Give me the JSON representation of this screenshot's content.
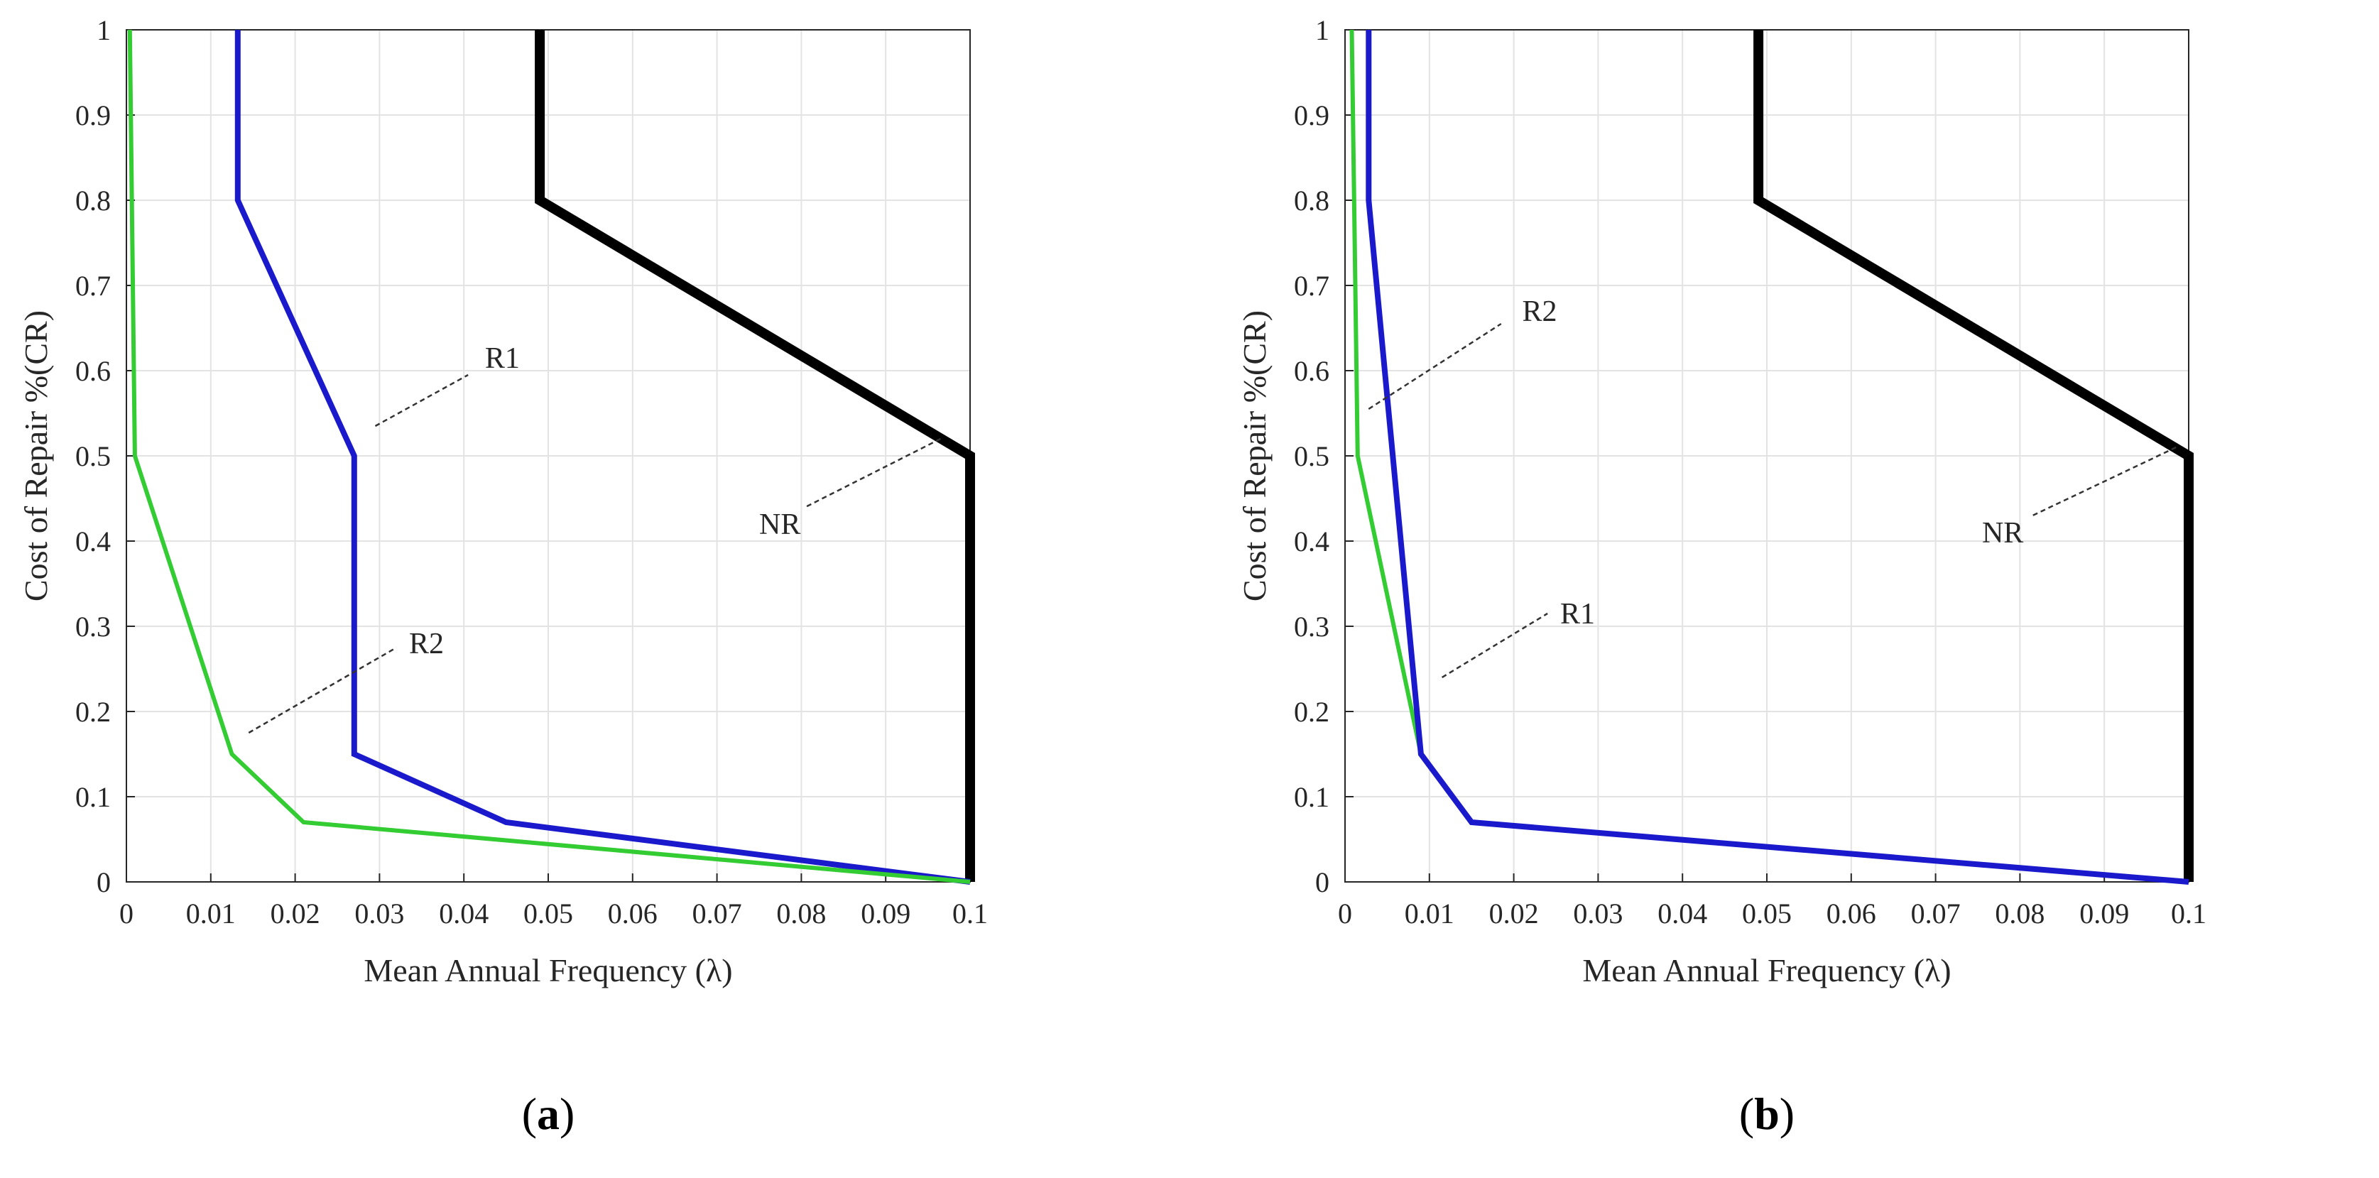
{
  "chart_data": [
    {
      "type": "line",
      "panel_label": "a",
      "xlabel": "Mean Annual Frequency (λ)",
      "ylabel": "Cost of Repair %(CR)",
      "xlim": [
        0,
        0.1
      ],
      "ylim": [
        0,
        1
      ],
      "xticks": [
        "0",
        "0.01",
        "0.02",
        "0.03",
        "0.04",
        "0.05",
        "0.06",
        "0.07",
        "0.08",
        "0.09",
        "0.1"
      ],
      "yticks": [
        "0",
        "0.1",
        "0.2",
        "0.3",
        "0.4",
        "0.5",
        "0.6",
        "0.7",
        "0.8",
        "0.9",
        "1"
      ],
      "grid": true,
      "series": [
        {
          "label": "NR",
          "color": "#000000",
          "x": [
            0.049,
            0.049,
            0.1,
            0.1
          ],
          "y": [
            1.0,
            0.8,
            0.5,
            0.0
          ]
        },
        {
          "label": "R1",
          "color": "#1a1acc",
          "x": [
            0.0132,
            0.0132,
            0.027,
            0.027,
            0.045,
            0.1
          ],
          "y": [
            1.0,
            0.8,
            0.5,
            0.15,
            0.07,
            0.0
          ]
        },
        {
          "label": "R2",
          "color": "#33cc33",
          "x": [
            0.0004,
            0.001,
            0.0125,
            0.021,
            0.1
          ],
          "y": [
            1.0,
            0.5,
            0.15,
            0.07,
            0.0
          ]
        }
      ],
      "annotations": [
        {
          "text": "R1",
          "line_from": [
            0.0295,
            0.535
          ],
          "line_to": [
            0.0405,
            0.595
          ],
          "label_at": [
            0.0425,
            0.615
          ]
        },
        {
          "text": "R2",
          "line_from": [
            0.0145,
            0.175
          ],
          "line_to": [
            0.032,
            0.275
          ],
          "label_at": [
            0.0335,
            0.28
          ]
        },
        {
          "text": "NR",
          "line_from": [
            0.0965,
            0.52
          ],
          "line_to": [
            0.0805,
            0.44
          ],
          "label_at": [
            0.075,
            0.42
          ]
        }
      ]
    },
    {
      "type": "line",
      "panel_label": "b",
      "xlabel": "Mean Annual Frequency (λ)",
      "ylabel": "Cost of Repair %(CR)",
      "xlim": [
        0,
        0.1
      ],
      "ylim": [
        0,
        1
      ],
      "xticks": [
        "0",
        "0.01",
        "0.02",
        "0.03",
        "0.04",
        "0.05",
        "0.06",
        "0.07",
        "0.08",
        "0.09",
        "0.1"
      ],
      "yticks": [
        "0",
        "0.1",
        "0.2",
        "0.3",
        "0.4",
        "0.5",
        "0.6",
        "0.7",
        "0.8",
        "0.9",
        "1"
      ],
      "grid": true,
      "series": [
        {
          "label": "NR",
          "color": "#000000",
          "x": [
            0.049,
            0.049,
            0.1,
            0.1
          ],
          "y": [
            1.0,
            0.8,
            0.5,
            0.0
          ]
        },
        {
          "label": "R2",
          "color": "#33cc33",
          "x": [
            0.0008,
            0.0015,
            0.009,
            0.015,
            0.1
          ],
          "y": [
            1.0,
            0.5,
            0.15,
            0.07,
            0.0
          ]
        },
        {
          "label": "R1",
          "color": "#1a1acc",
          "x": [
            0.0028,
            0.0028,
            0.009,
            0.015,
            0.1
          ],
          "y": [
            1.0,
            0.8,
            0.15,
            0.07,
            0.0
          ]
        }
      ],
      "annotations": [
        {
          "text": "R2",
          "line_from": [
            0.0028,
            0.555
          ],
          "line_to": [
            0.0185,
            0.655
          ],
          "label_at": [
            0.021,
            0.67
          ]
        },
        {
          "text": "R1",
          "line_from": [
            0.0115,
            0.24
          ],
          "line_to": [
            0.024,
            0.315
          ],
          "label_at": [
            0.0255,
            0.315
          ]
        },
        {
          "text": "NR",
          "line_from": [
            0.0985,
            0.51
          ],
          "line_to": [
            0.0815,
            0.43
          ],
          "label_at": [
            0.0755,
            0.41
          ]
        }
      ]
    }
  ]
}
